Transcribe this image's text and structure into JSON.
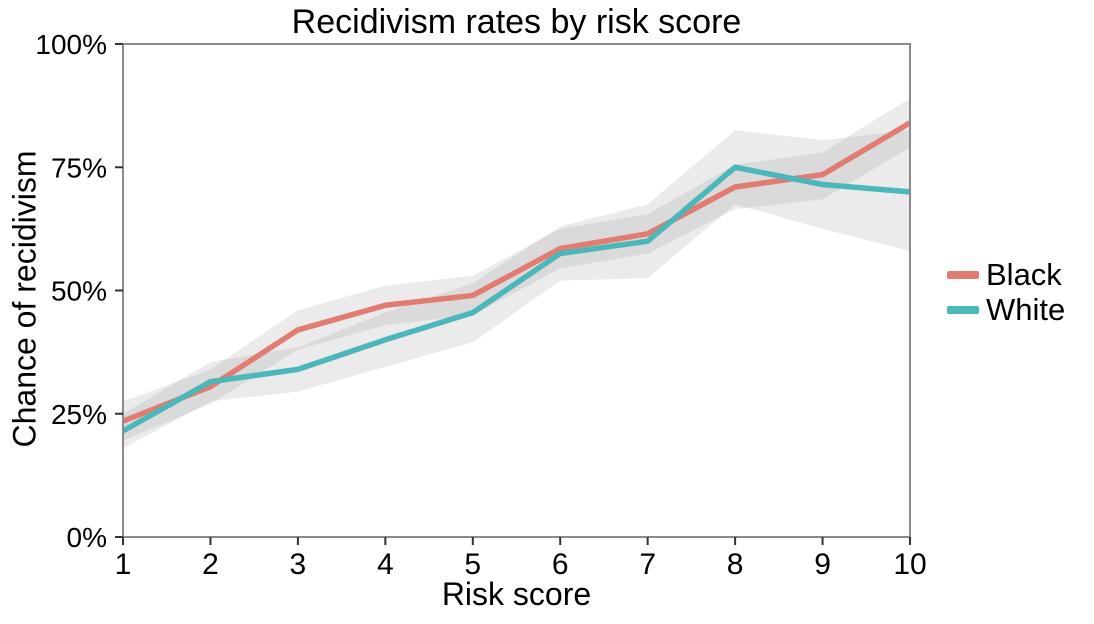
{
  "title": "Recidivism rates by risk score",
  "axes": {
    "x_label": "Risk score",
    "y_label": "Chance of recidivism",
    "x_ticks": [
      "1",
      "2",
      "3",
      "4",
      "5",
      "6",
      "7",
      "8",
      "9",
      "10"
    ],
    "y_ticks": [
      "0%",
      "25%",
      "50%",
      "75%",
      "100%"
    ]
  },
  "legend": [
    {
      "label": "Black",
      "color": "#e27c72"
    },
    {
      "label": "White",
      "color": "#4cb7b9"
    }
  ],
  "colors": {
    "black_series": "#e27c72",
    "white_series": "#4cb7b9",
    "confidence_band": "rgba(130,130,130,0.16)",
    "panel_border": "#8a8a8a",
    "tick": "#333333",
    "text": "#000000"
  },
  "chart_data": {
    "type": "line",
    "title": "Recidivism rates by risk score",
    "xlabel": "Risk score",
    "ylabel": "Chance of recidivism",
    "x": [
      1,
      2,
      3,
      4,
      5,
      6,
      7,
      8,
      9,
      10
    ],
    "xlim": [
      1,
      10
    ],
    "ylim": [
      0,
      100
    ],
    "x_tick_labels": [
      "1",
      "2",
      "3",
      "4",
      "5",
      "6",
      "7",
      "8",
      "9",
      "10"
    ],
    "y_tick_values": [
      0,
      25,
      50,
      75,
      100
    ],
    "y_tick_labels": [
      "0%",
      "25%",
      "50%",
      "75%",
      "100%"
    ],
    "grid": false,
    "legend_position": "right-middle",
    "band_fill": "rgba(130,130,130,0.16)",
    "series": [
      {
        "name": "Black",
        "color": "#e27c72",
        "values": [
          23.5,
          30.5,
          42,
          47,
          49,
          58.5,
          61.5,
          71,
          73.5,
          84
        ],
        "band_lower": [
          19.5,
          27,
          38,
          43,
          45,
          54.5,
          57.5,
          66.5,
          68.5,
          79
        ],
        "band_upper": [
          27.5,
          34,
          46,
          51,
          53,
          62.5,
          65.5,
          75.5,
          78,
          89
        ]
      },
      {
        "name": "White",
        "color": "#4cb7b9",
        "values": [
          21.5,
          31.5,
          34,
          40,
          45.5,
          57.5,
          60,
          75,
          71.5,
          70
        ],
        "band_lower": [
          18,
          27.5,
          29.5,
          34.5,
          39.5,
          52,
          52.5,
          67.5,
          62.5,
          58
        ],
        "band_upper": [
          25,
          35.5,
          38.5,
          45.5,
          51.5,
          63,
          67.5,
          82.5,
          80.5,
          82.5
        ]
      }
    ]
  }
}
